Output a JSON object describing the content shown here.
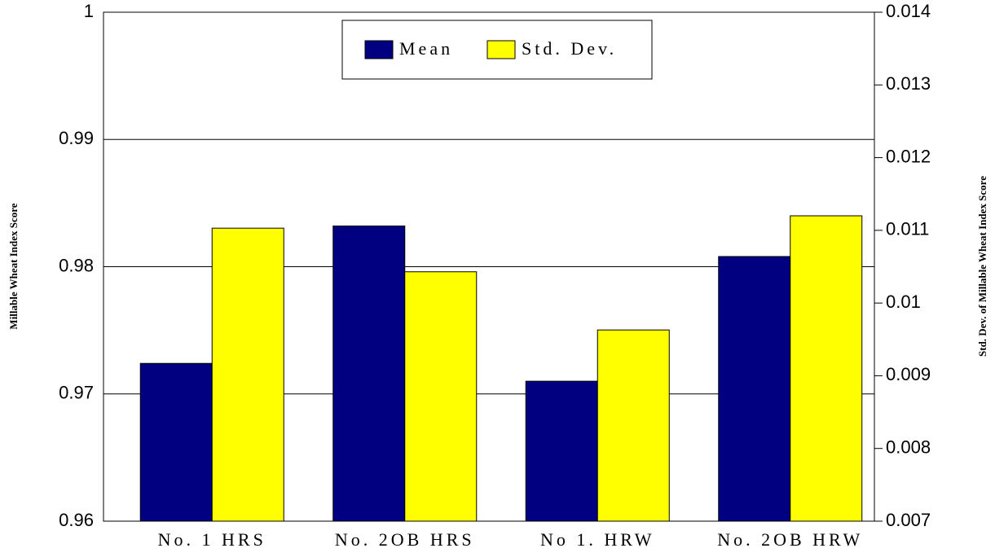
{
  "chart_data": {
    "type": "bar",
    "categories": [
      "No. 1 HRS",
      "No. 2OB HRS",
      "No 1. HRW",
      "No. 2OB HRW"
    ],
    "series": [
      {
        "name": "Mean",
        "color": "#000080",
        "values": [
          0.9724,
          0.9832,
          0.971,
          0.9808
        ]
      },
      {
        "name": "Std. Dev.",
        "color": "#ffff00",
        "axis": "y2",
        "values": [
          0.01103,
          0.01043,
          0.00963,
          0.0112
        ]
      }
    ],
    "y_label": "Millable Wheat Index Score",
    "y2_label": "Std. Dev. of Millable Wheat Index Score",
    "ylim": [
      0.96,
      1
    ],
    "yticks": [
      0.96,
      0.97,
      0.98,
      0.99,
      1
    ],
    "y2lim": [
      0.007,
      0.014
    ],
    "y2ticks": [
      0.007,
      0.008,
      0.009,
      0.01,
      0.011,
      0.012,
      0.013,
      0.014
    ],
    "grid": true,
    "legend": "top"
  }
}
